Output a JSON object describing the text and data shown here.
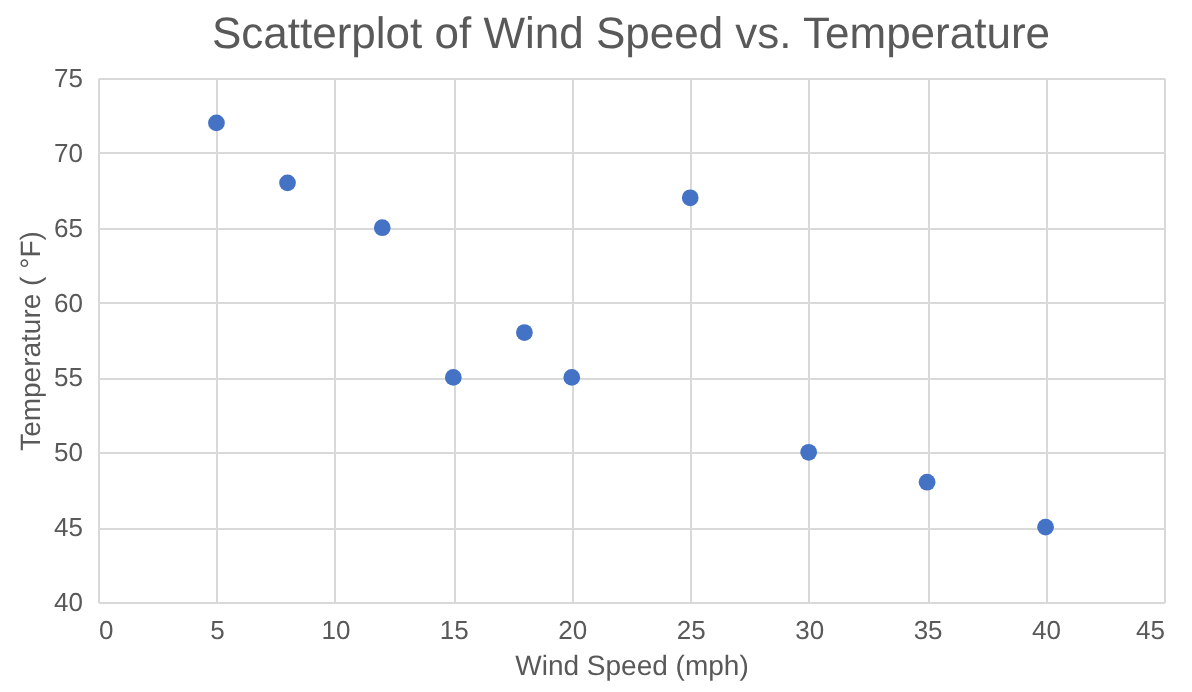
{
  "chart_data": {
    "type": "scatter",
    "title": "Scatterplot of Wind Speed vs. Temperature",
    "xlabel": "Wind Speed (mph)",
    "ylabel": "Temperature ( °F)",
    "x": [
      5,
      8,
      12,
      15,
      18,
      20,
      25,
      30,
      35,
      40
    ],
    "series": [
      {
        "color": "#4472c4",
        "values": [
          72,
          68,
          65,
          55,
          58,
          55,
          67,
          50,
          48,
          45
        ]
      }
    ],
    "xlim": [
      0,
      45
    ],
    "xticks": [
      0,
      5,
      10,
      15,
      20,
      25,
      30,
      35,
      40,
      45
    ],
    "ylim": [
      40,
      75
    ],
    "yticks": [
      40,
      45,
      50,
      55,
      60,
      65,
      70,
      75
    ],
    "grid": true,
    "marker": "circle"
  }
}
